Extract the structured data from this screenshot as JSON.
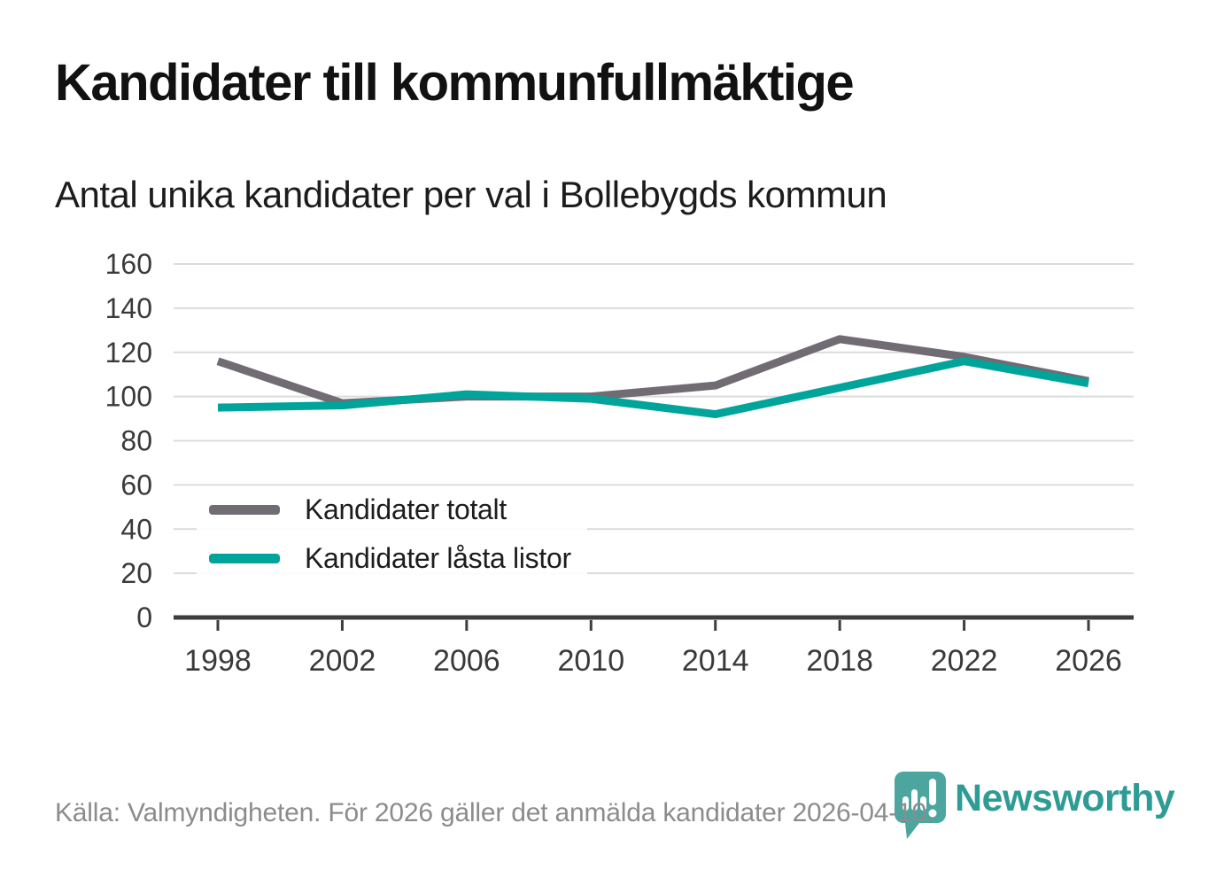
{
  "header": {
    "title": "Kandidater till kommunfullmäktige",
    "subtitle": "Antal unika kandidater per val i Bollebygds kommun"
  },
  "chart_data": {
    "type": "line",
    "categories": [
      "1998",
      "2002",
      "2006",
      "2010",
      "2014",
      "2018",
      "2022",
      "2026"
    ],
    "series": [
      {
        "name": "Kandidater totalt",
        "color": "#716c74",
        "values": [
          116,
          97,
          100,
          100,
          105,
          126,
          118,
          107
        ]
      },
      {
        "name": "Kandidater låsta listor",
        "color": "#00a49a",
        "values": [
          95,
          96,
          101,
          99,
          92,
          104,
          116,
          106
        ]
      }
    ],
    "title": "Kandidater till kommunfullmäktige",
    "subtitle": "Antal unika kandidater per val i Bollebygds kommun",
    "xlabel": "",
    "ylabel": "",
    "ylim": [
      0,
      160
    ],
    "yticks": [
      0,
      20,
      40,
      60,
      80,
      100,
      120,
      140,
      160
    ],
    "grid": true,
    "legend_position": "inside-bottom-left"
  },
  "styles": {
    "grid_color": "#dcdcdc",
    "axis_color": "#3d3d3d",
    "tick_label_color": "#3a3a3a",
    "line_width": 9
  },
  "footer": {
    "source": "Källa: Valmyndigheten. För 2026 gäller det anmälda kandidater 2026-04-10."
  },
  "branding": {
    "logo_text": "Newsworthy",
    "wordmark_color": "#2e9c95",
    "badge_color": "#4ca69f"
  }
}
